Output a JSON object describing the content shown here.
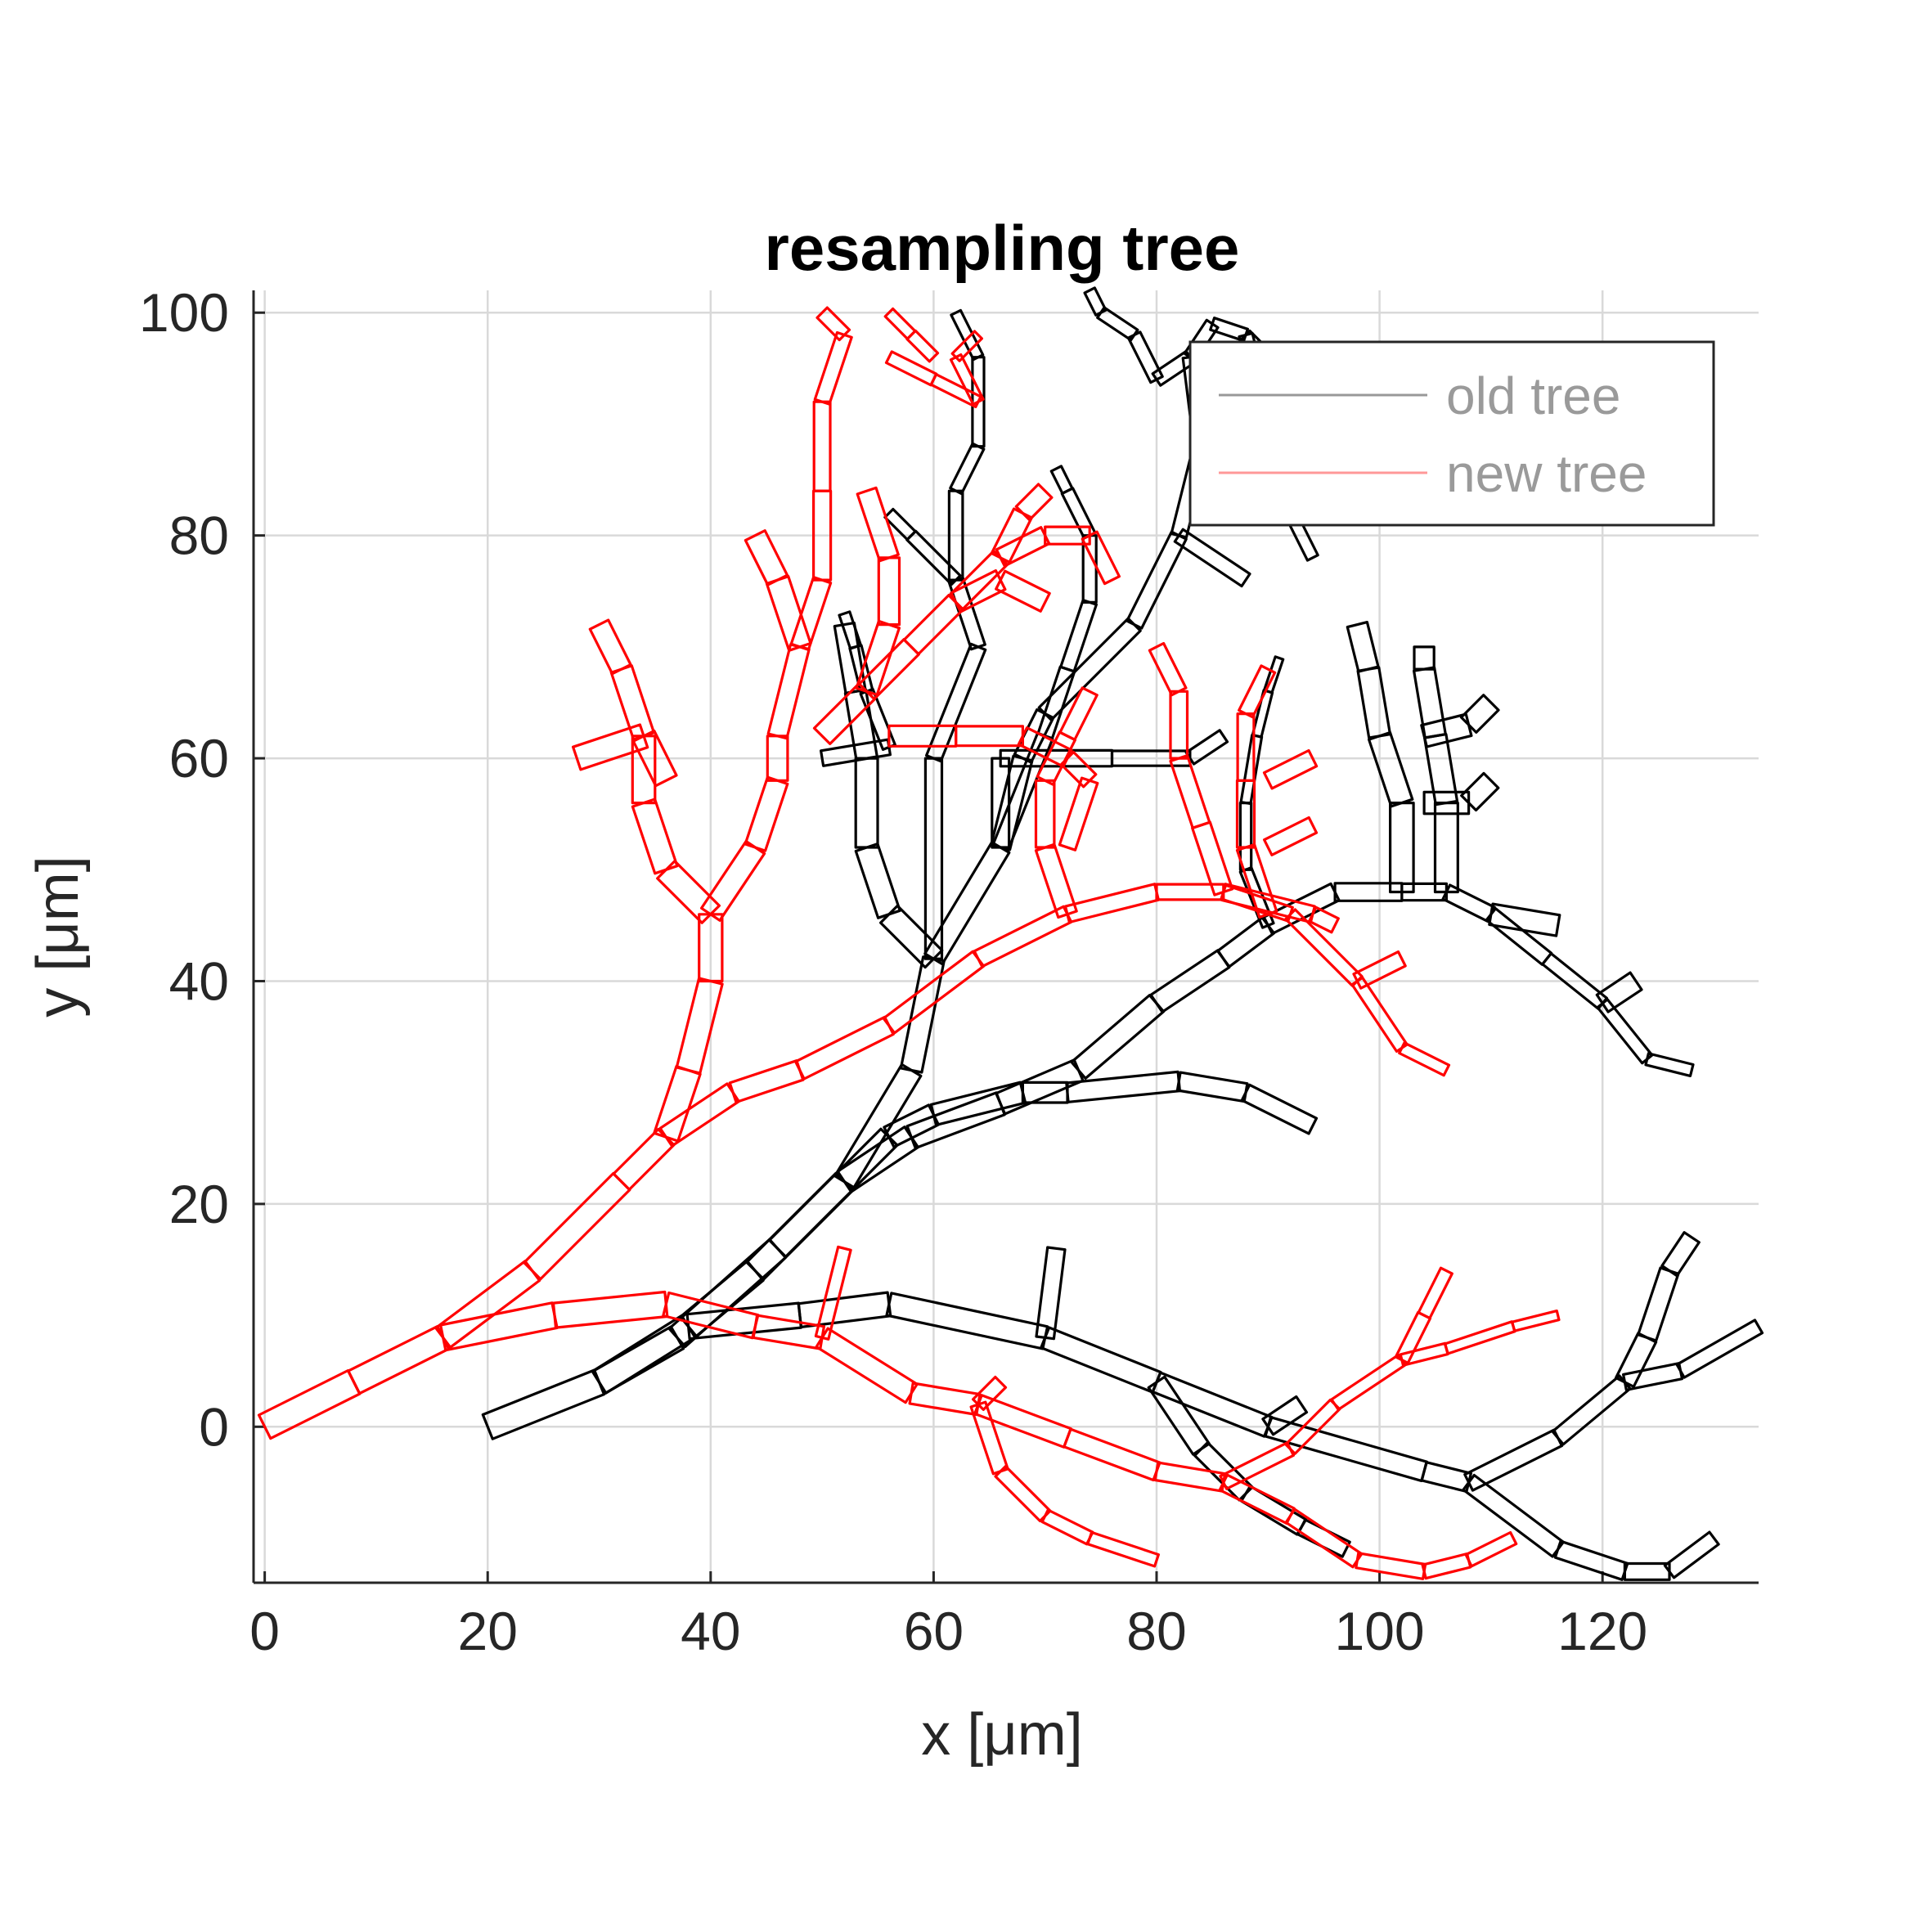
{
  "chart_data": {
    "type": "line",
    "title": "resampling tree",
    "xlabel": "x [μm]",
    "ylabel": "y [μm]",
    "xlim": [
      -1,
      134
    ],
    "ylim": [
      -14,
      102
    ],
    "xticks": [
      0,
      20,
      40,
      60,
      80,
      100,
      120
    ],
    "yticks": [
      0,
      20,
      40,
      60,
      80,
      100
    ],
    "grid": true,
    "legend_position": "top-right",
    "series": [
      {
        "name": "old tree",
        "color": "#000000",
        "width_scale": 1.0,
        "branches": [
          [
            [
              20,
              0
            ],
            [
              30,
              4
            ],
            [
              37,
              8
            ],
            [
              46,
              16
            ],
            [
              52,
              22
            ],
            [
              58,
              32
            ],
            [
              60,
              42
            ],
            [
              66,
              52
            ],
            [
              68,
              60
            ],
            [
              70,
              64
            ],
            [
              78,
              72
            ],
            [
              82,
              80
            ],
            [
              84,
              88
            ],
            [
              83,
              96
            ],
            [
              85,
              99
            ],
            [
              88,
              98
            ],
            [
              90,
              96
            ]
          ],
          [
            [
              30,
              4
            ],
            [
              38,
              9
            ],
            [
              48,
              10
            ],
            [
              56,
              11
            ],
            [
              70,
              8
            ],
            [
              80,
              4
            ],
            [
              90,
              0
            ],
            [
              104,
              -4
            ],
            [
              108,
              -5
            ],
            [
              116,
              -1
            ],
            [
              122,
              4
            ],
            [
              127,
              5
            ],
            [
              134,
              9
            ]
          ],
          [
            [
              38,
              9
            ],
            [
              44,
              14
            ],
            [
              52,
              22
            ],
            [
              56,
              26
            ],
            [
              60,
              28
            ],
            [
              68,
              30
            ],
            [
              72,
              30
            ],
            [
              82,
              31
            ],
            [
              88,
              30
            ],
            [
              94,
              27
            ]
          ],
          [
            [
              52,
              22
            ],
            [
              58,
              26
            ],
            [
              66,
              29
            ],
            [
              73,
              32
            ],
            [
              80,
              38
            ],
            [
              86,
              42
            ],
            [
              90,
              45
            ],
            [
              96,
              48
            ],
            [
              102,
              48
            ],
            [
              106,
              48
            ],
            [
              110,
              46
            ],
            [
              115,
              42
            ],
            [
              120,
              38
            ],
            [
              124,
              33
            ],
            [
              128,
              32
            ]
          ],
          [
            [
              60,
              42
            ],
            [
              56,
              46
            ],
            [
              54,
              52
            ],
            [
              54,
              60
            ],
            [
              53,
              66
            ],
            [
              52,
              72
            ]
          ],
          [
            [
              102,
              48
            ],
            [
              102,
              56
            ],
            [
              100,
              62
            ],
            [
              99,
              68
            ],
            [
              98,
              72
            ]
          ],
          [
            [
              106,
              48
            ],
            [
              106,
              56
            ],
            [
              105,
              62
            ],
            [
              104,
              68
            ],
            [
              104,
              70
            ]
          ],
          [
            [
              104,
              62
            ],
            [
              108,
              63
            ],
            [
              110,
              65
            ]
          ],
          [
            [
              104,
              56
            ],
            [
              108,
              56
            ],
            [
              110,
              58
            ]
          ],
          [
            [
              110,
              46
            ],
            [
              116,
              45
            ]
          ],
          [
            [
              120,
              38
            ],
            [
              123,
              40
            ]
          ],
          [
            [
              122,
              4
            ],
            [
              124,
              8
            ],
            [
              126,
              14
            ],
            [
              128,
              17
            ]
          ],
          [
            [
              80,
              4
            ],
            [
              84,
              -2
            ],
            [
              88,
              -6
            ],
            [
              93,
              -9
            ],
            [
              97,
              -11
            ]
          ],
          [
            [
              90,
              0
            ],
            [
              93,
              2
            ]
          ],
          [
            [
              108,
              -5
            ],
            [
              116,
              -11
            ],
            [
              122,
              -13
            ],
            [
              126,
              -13
            ],
            [
              130,
              -10
            ]
          ],
          [
            [
              70,
              8
            ],
            [
              71,
              16
            ]
          ],
          [
            [
              66,
              60
            ],
            [
              66,
              52
            ],
            [
              70,
              62
            ],
            [
              72,
              68
            ],
            [
              74,
              74
            ],
            [
              74,
              80
            ],
            [
              72,
              84
            ],
            [
              71,
              86
            ]
          ],
          [
            [
              60,
              42
            ],
            [
              60,
              60
            ],
            [
              64,
              70
            ],
            [
              62,
              76
            ],
            [
              62,
              84
            ],
            [
              64,
              88
            ],
            [
              64,
              96
            ],
            [
              62,
              100
            ]
          ],
          [
            [
              66,
              60
            ],
            [
              76,
              60
            ],
            [
              83,
              60
            ],
            [
              86,
              62
            ]
          ],
          [
            [
              56,
              61
            ],
            [
              50,
              60
            ]
          ],
          [
            [
              82,
              80
            ],
            [
              88,
              76
            ]
          ],
          [
            [
              83,
              96
            ],
            [
              80,
              94
            ],
            [
              78,
              98
            ],
            [
              75,
              100
            ],
            [
              74,
              102
            ]
          ],
          [
            [
              88,
              98
            ],
            [
              90,
              90
            ],
            [
              92,
              82
            ],
            [
              94,
              78
            ]
          ],
          [
            [
              56,
              61
            ],
            [
              54,
              66
            ],
            [
              53,
              70
            ],
            [
              52,
              73
            ]
          ],
          [
            [
              62,
              76
            ],
            [
              58,
              80
            ],
            [
              56,
              82
            ]
          ],
          [
            [
              90,
              45
            ],
            [
              88,
              50
            ],
            [
              88,
              56
            ],
            [
              89,
              62
            ],
            [
              90,
              66
            ],
            [
              91,
              69
            ]
          ]
        ]
      },
      {
        "name": "new tree",
        "color": "#ff0000",
        "width_scale": 1.0,
        "branches": [
          [
            [
              0,
              0
            ],
            [
              8,
              4
            ],
            [
              16,
              8
            ],
            [
              24,
              14
            ],
            [
              32,
              22
            ],
            [
              36,
              26
            ],
            [
              42,
              30
            ],
            [
              48,
              32
            ],
            [
              56,
              36
            ],
            [
              64,
              42
            ],
            [
              72,
              46
            ],
            [
              80,
              48
            ],
            [
              86,
              48
            ],
            [
              92,
              46
            ],
            [
              98,
              40
            ],
            [
              102,
              34
            ],
            [
              106,
              32
            ]
          ],
          [
            [
              16,
              8
            ],
            [
              26,
              10
            ],
            [
              36,
              11
            ],
            [
              44,
              9
            ],
            [
              50,
              8
            ],
            [
              58,
              3
            ],
            [
              64,
              2
            ],
            [
              72,
              -1
            ],
            [
              80,
              -4
            ],
            [
              86,
              -5
            ],
            [
              92,
              -8
            ],
            [
              98,
              -12
            ],
            [
              104,
              -13
            ],
            [
              108,
              -12
            ],
            [
              112,
              -10
            ]
          ],
          [
            [
              36,
              26
            ],
            [
              38,
              32
            ],
            [
              40,
              40
            ],
            [
              40,
              46
            ],
            [
              44,
              52
            ],
            [
              46,
              58
            ],
            [
              46,
              62
            ],
            [
              48,
              70
            ],
            [
              50,
              76
            ],
            [
              50,
              84
            ],
            [
              50,
              92
            ],
            [
              52,
              98
            ],
            [
              50,
              100
            ]
          ],
          [
            [
              40,
              46
            ],
            [
              36,
              50
            ],
            [
              34,
              56
            ],
            [
              34,
              62
            ],
            [
              32,
              68
            ],
            [
              30,
              72
            ]
          ],
          [
            [
              34,
              62
            ],
            [
              28,
              60
            ]
          ],
          [
            [
              34,
              62
            ],
            [
              36,
              58
            ]
          ],
          [
            [
              48,
              70
            ],
            [
              46,
              76
            ],
            [
              44,
              80
            ]
          ],
          [
            [
              50,
              62
            ],
            [
              54,
              66
            ],
            [
              58,
              70
            ],
            [
              62,
              74
            ],
            [
              66,
              78
            ],
            [
              70,
              80
            ],
            [
              74,
              80
            ],
            [
              76,
              76
            ]
          ],
          [
            [
              54,
              66
            ],
            [
              56,
              72
            ],
            [
              56,
              78
            ],
            [
              54,
              84
            ]
          ],
          [
            [
              62,
              74
            ],
            [
              66,
              76
            ],
            [
              70,
              74
            ]
          ],
          [
            [
              56,
              62
            ],
            [
              62,
              62
            ],
            [
              68,
              62
            ],
            [
              72,
              60
            ],
            [
              74,
              58
            ],
            [
              72,
              52
            ]
          ],
          [
            [
              66,
              78
            ],
            [
              68,
              82
            ],
            [
              70,
              84
            ]
          ],
          [
            [
              72,
              46
            ],
            [
              70,
              52
            ],
            [
              70,
              58
            ],
            [
              72,
              62
            ],
            [
              74,
              66
            ]
          ],
          [
            [
              86,
              48
            ],
            [
              84,
              54
            ],
            [
              82,
              60
            ],
            [
              82,
              66
            ],
            [
              80,
              70
            ]
          ],
          [
            [
              90,
              46
            ],
            [
              88,
              52
            ],
            [
              88,
              58
            ],
            [
              88,
              64
            ],
            [
              90,
              68
            ]
          ],
          [
            [
              90,
              58
            ],
            [
              94,
              60
            ]
          ],
          [
            [
              90,
              52
            ],
            [
              94,
              54
            ]
          ],
          [
            [
              86,
              48
            ],
            [
              94,
              46
            ],
            [
              96,
              45
            ]
          ],
          [
            [
              98,
              40
            ],
            [
              102,
              42
            ]
          ],
          [
            [
              64,
              2
            ],
            [
              66,
              -4
            ],
            [
              70,
              -8
            ],
            [
              74,
              -10
            ],
            [
              80,
              -12
            ]
          ],
          [
            [
              64,
              2
            ],
            [
              66,
              4
            ]
          ],
          [
            [
              86,
              -5
            ],
            [
              92,
              -2
            ],
            [
              96,
              2
            ],
            [
              102,
              6
            ],
            [
              106,
              7
            ],
            [
              112,
              9
            ],
            [
              116,
              10
            ]
          ],
          [
            [
              102,
              6
            ],
            [
              104,
              10
            ],
            [
              106,
              14
            ]
          ],
          [
            [
              50,
              8
            ],
            [
              52,
              16
            ]
          ],
          [
            [
              56,
              96
            ],
            [
              60,
              94
            ],
            [
              64,
              92
            ]
          ],
          [
            [
              60,
              96
            ],
            [
              58,
              98
            ],
            [
              56,
              100
            ]
          ],
          [
            [
              64,
              92
            ],
            [
              62,
              96
            ],
            [
              64,
              98
            ]
          ]
        ]
      }
    ]
  }
}
